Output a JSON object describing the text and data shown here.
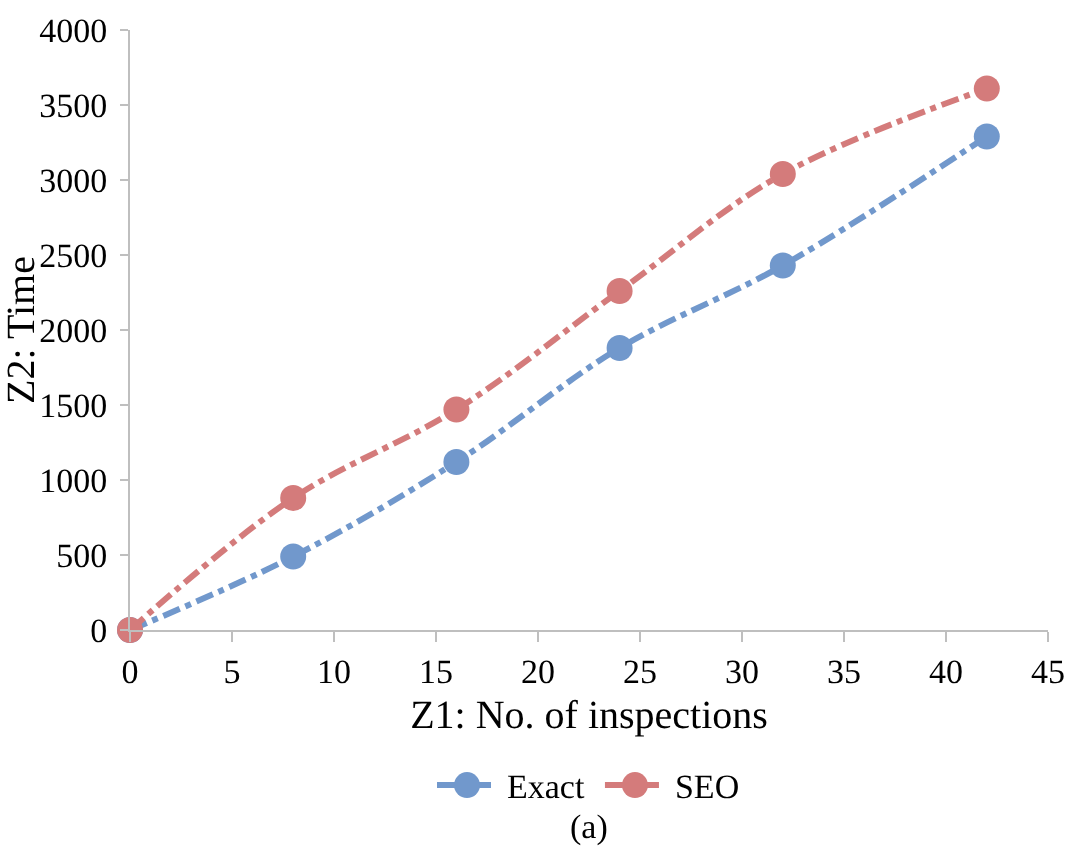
{
  "chart_data": {
    "type": "line",
    "xlabel": "Z1: No. of inspections",
    "ylabel": "Z2: Time",
    "x": [
      0,
      8,
      16,
      24,
      32,
      42
    ],
    "series": [
      {
        "name": "Exact",
        "color": "#7198cc",
        "values": [
          0,
          490,
          1120,
          1880,
          2430,
          3290
        ]
      },
      {
        "name": "SEO",
        "color": "#d47b7b",
        "values": [
          0,
          880,
          1470,
          2260,
          3040,
          3610
        ]
      }
    ],
    "xlim": [
      0,
      45
    ],
    "xticks": [
      0,
      5,
      10,
      15,
      20,
      25,
      30,
      35,
      40,
      45
    ],
    "ylim": [
      0,
      4000
    ],
    "yticks": [
      0,
      500,
      1000,
      1500,
      2000,
      2500,
      3000,
      3500,
      4000
    ],
    "grid": false,
    "legend": "bottom",
    "marker": "circle",
    "line_style": "dashed",
    "annotations": [
      "(a)"
    ]
  }
}
